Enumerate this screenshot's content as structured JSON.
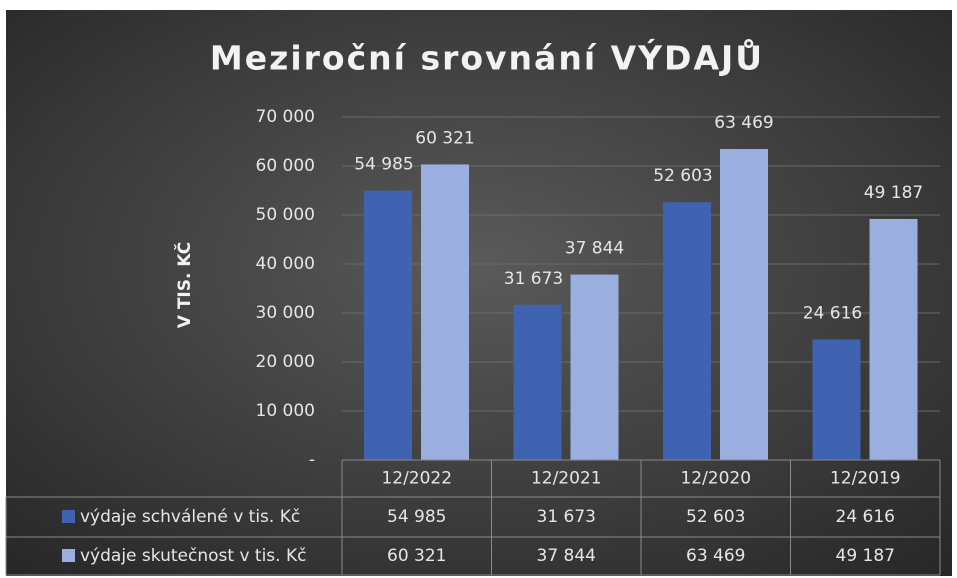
{
  "chart_data": {
    "type": "bar",
    "title": "Meziroční srovnání VÝDAJŮ",
    "y_axis_label": "V TIS. KČ",
    "categories": [
      "12/2022",
      "12/2021",
      "12/2020",
      "12/2019"
    ],
    "series": [
      {
        "name": "výdaje schválené v tis. Kč",
        "color": "#3f63b0",
        "values": [
          54985,
          31673,
          52603,
          24616
        ],
        "value_labels": [
          "54 985",
          "31 673",
          "52 603",
          "24 616"
        ]
      },
      {
        "name": "výdaje skutečnost v tis. Kč",
        "color": "#9aaee0",
        "values": [
          60321,
          37844,
          63469,
          49187
        ],
        "value_labels": [
          "60 321",
          "37 844",
          "63 469",
          "49 187"
        ]
      }
    ],
    "ylim": [
      0,
      70000
    ],
    "yticks": [
      {
        "value": 0,
        "label": "-"
      },
      {
        "value": 10000,
        "label": "10 000"
      },
      {
        "value": 20000,
        "label": "20 000"
      },
      {
        "value": 30000,
        "label": "30 000"
      },
      {
        "value": 40000,
        "label": "40 000"
      },
      {
        "value": 50000,
        "label": "50 000"
      },
      {
        "value": 60000,
        "label": "60 000"
      },
      {
        "value": 70000,
        "label": "70 000"
      }
    ],
    "grid": true,
    "data_table": true
  }
}
